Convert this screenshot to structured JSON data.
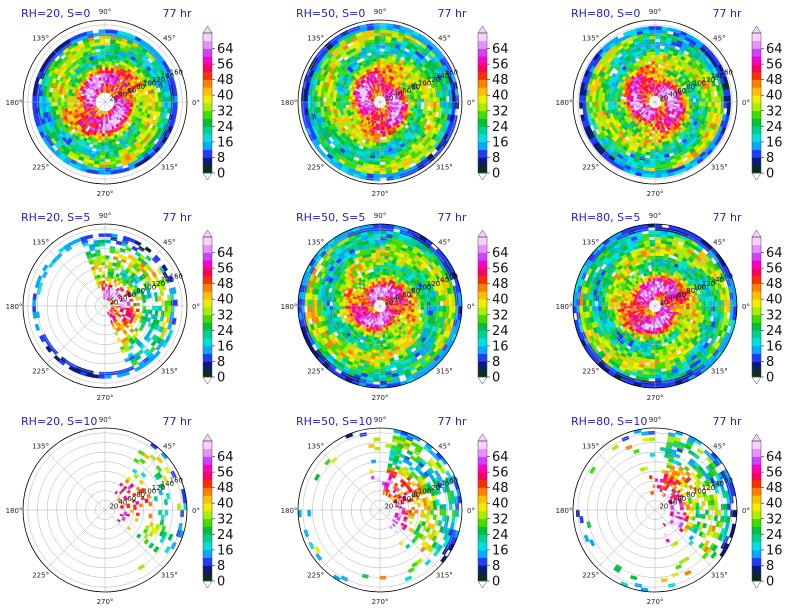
{
  "chart_data": {
    "type": "polar-filled-contour",
    "time_label": "77 hr",
    "angle_ticks": [
      "0°",
      "45°",
      "90°",
      "135°",
      "180°",
      "225°",
      "270°",
      "315°"
    ],
    "radial_ticks": [
      20,
      40,
      60,
      80,
      100,
      120,
      140,
      160
    ],
    "colorbar": {
      "ticks": [
        0,
        8,
        16,
        24,
        32,
        40,
        48,
        56,
        64
      ],
      "colors": [
        "#0b2e1a",
        "#0a1a7a",
        "#1f3cff",
        "#00aaff",
        "#00e0e0",
        "#00d090",
        "#00c040",
        "#40dd00",
        "#a8ee00",
        "#eeee00",
        "#ffc000",
        "#ff8000",
        "#ff3000",
        "#ff0060",
        "#ff00c0",
        "#d040ff",
        "#e890ff",
        "#f6d0ff"
      ],
      "extend": "both"
    },
    "panels": [
      {
        "title": "RH=20, S=0",
        "time": "77 hr",
        "rh": 20,
        "s": 0,
        "coverage": "full-ring",
        "inner_radius": 20,
        "outer_radius": 150
      },
      {
        "title": "RH=50, S=0",
        "time": "77 hr",
        "rh": 50,
        "s": 0,
        "coverage": "full-ring",
        "inner_radius": 15,
        "outer_radius": 165
      },
      {
        "title": "RH=80, S=0",
        "time": "77 hr",
        "rh": 80,
        "s": 0,
        "coverage": "full-ring",
        "inner_radius": 15,
        "outer_radius": 160
      },
      {
        "title": "RH=20, S=5",
        "time": "77 hr",
        "rh": 20,
        "s": 5,
        "coverage": "north-east",
        "inner_radius": 10,
        "outer_radius": 150
      },
      {
        "title": "RH=50, S=5",
        "time": "77 hr",
        "rh": 50,
        "s": 5,
        "coverage": "full-disk",
        "inner_radius": 10,
        "outer_radius": 170
      },
      {
        "title": "RH=80, S=5",
        "time": "77 hr",
        "rh": 80,
        "s": 5,
        "coverage": "full-disk",
        "inner_radius": 15,
        "outer_radius": 170
      },
      {
        "title": "RH=20, S=10",
        "time": "77 hr",
        "rh": 20,
        "s": 10,
        "coverage": "east-edge",
        "inner_radius": 30,
        "outer_radius": 170
      },
      {
        "title": "RH=50, S=10",
        "time": "77 hr",
        "rh": 50,
        "s": 10,
        "coverage": "north-east",
        "inner_radius": 30,
        "outer_radius": 170
      },
      {
        "title": "RH=80, S=10",
        "time": "77 hr",
        "rh": 80,
        "s": 10,
        "coverage": "north-east",
        "inner_radius": 30,
        "outer_radius": 170
      }
    ],
    "rmax": 170
  }
}
